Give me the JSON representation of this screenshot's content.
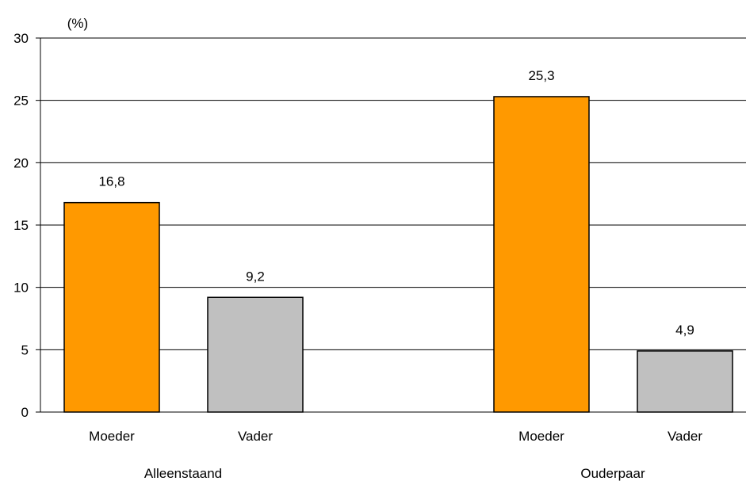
{
  "chart_data": {
    "type": "bar",
    "unit_label": "(%)",
    "ylim": [
      0,
      30
    ],
    "yticks": [
      0,
      5,
      10,
      15,
      20,
      25,
      30
    ],
    "grid": true,
    "colors": {
      "Moeder": "#FF9900",
      "Vader": "#C0C0C0",
      "bar_border": "#000000",
      "grid": "#000000"
    },
    "groups": [
      {
        "label": "Alleenstaand",
        "bars": [
          {
            "category": "Moeder",
            "value": 16.8,
            "value_label": "16,8"
          },
          {
            "category": "Vader",
            "value": 9.2,
            "value_label": "9,2"
          }
        ]
      },
      {
        "label": "Ouderpaar",
        "bars": [
          {
            "category": "Moeder",
            "value": 25.3,
            "value_label": "25,3"
          },
          {
            "category": "Vader",
            "value": 4.9,
            "value_label": "4,9"
          }
        ]
      }
    ]
  }
}
